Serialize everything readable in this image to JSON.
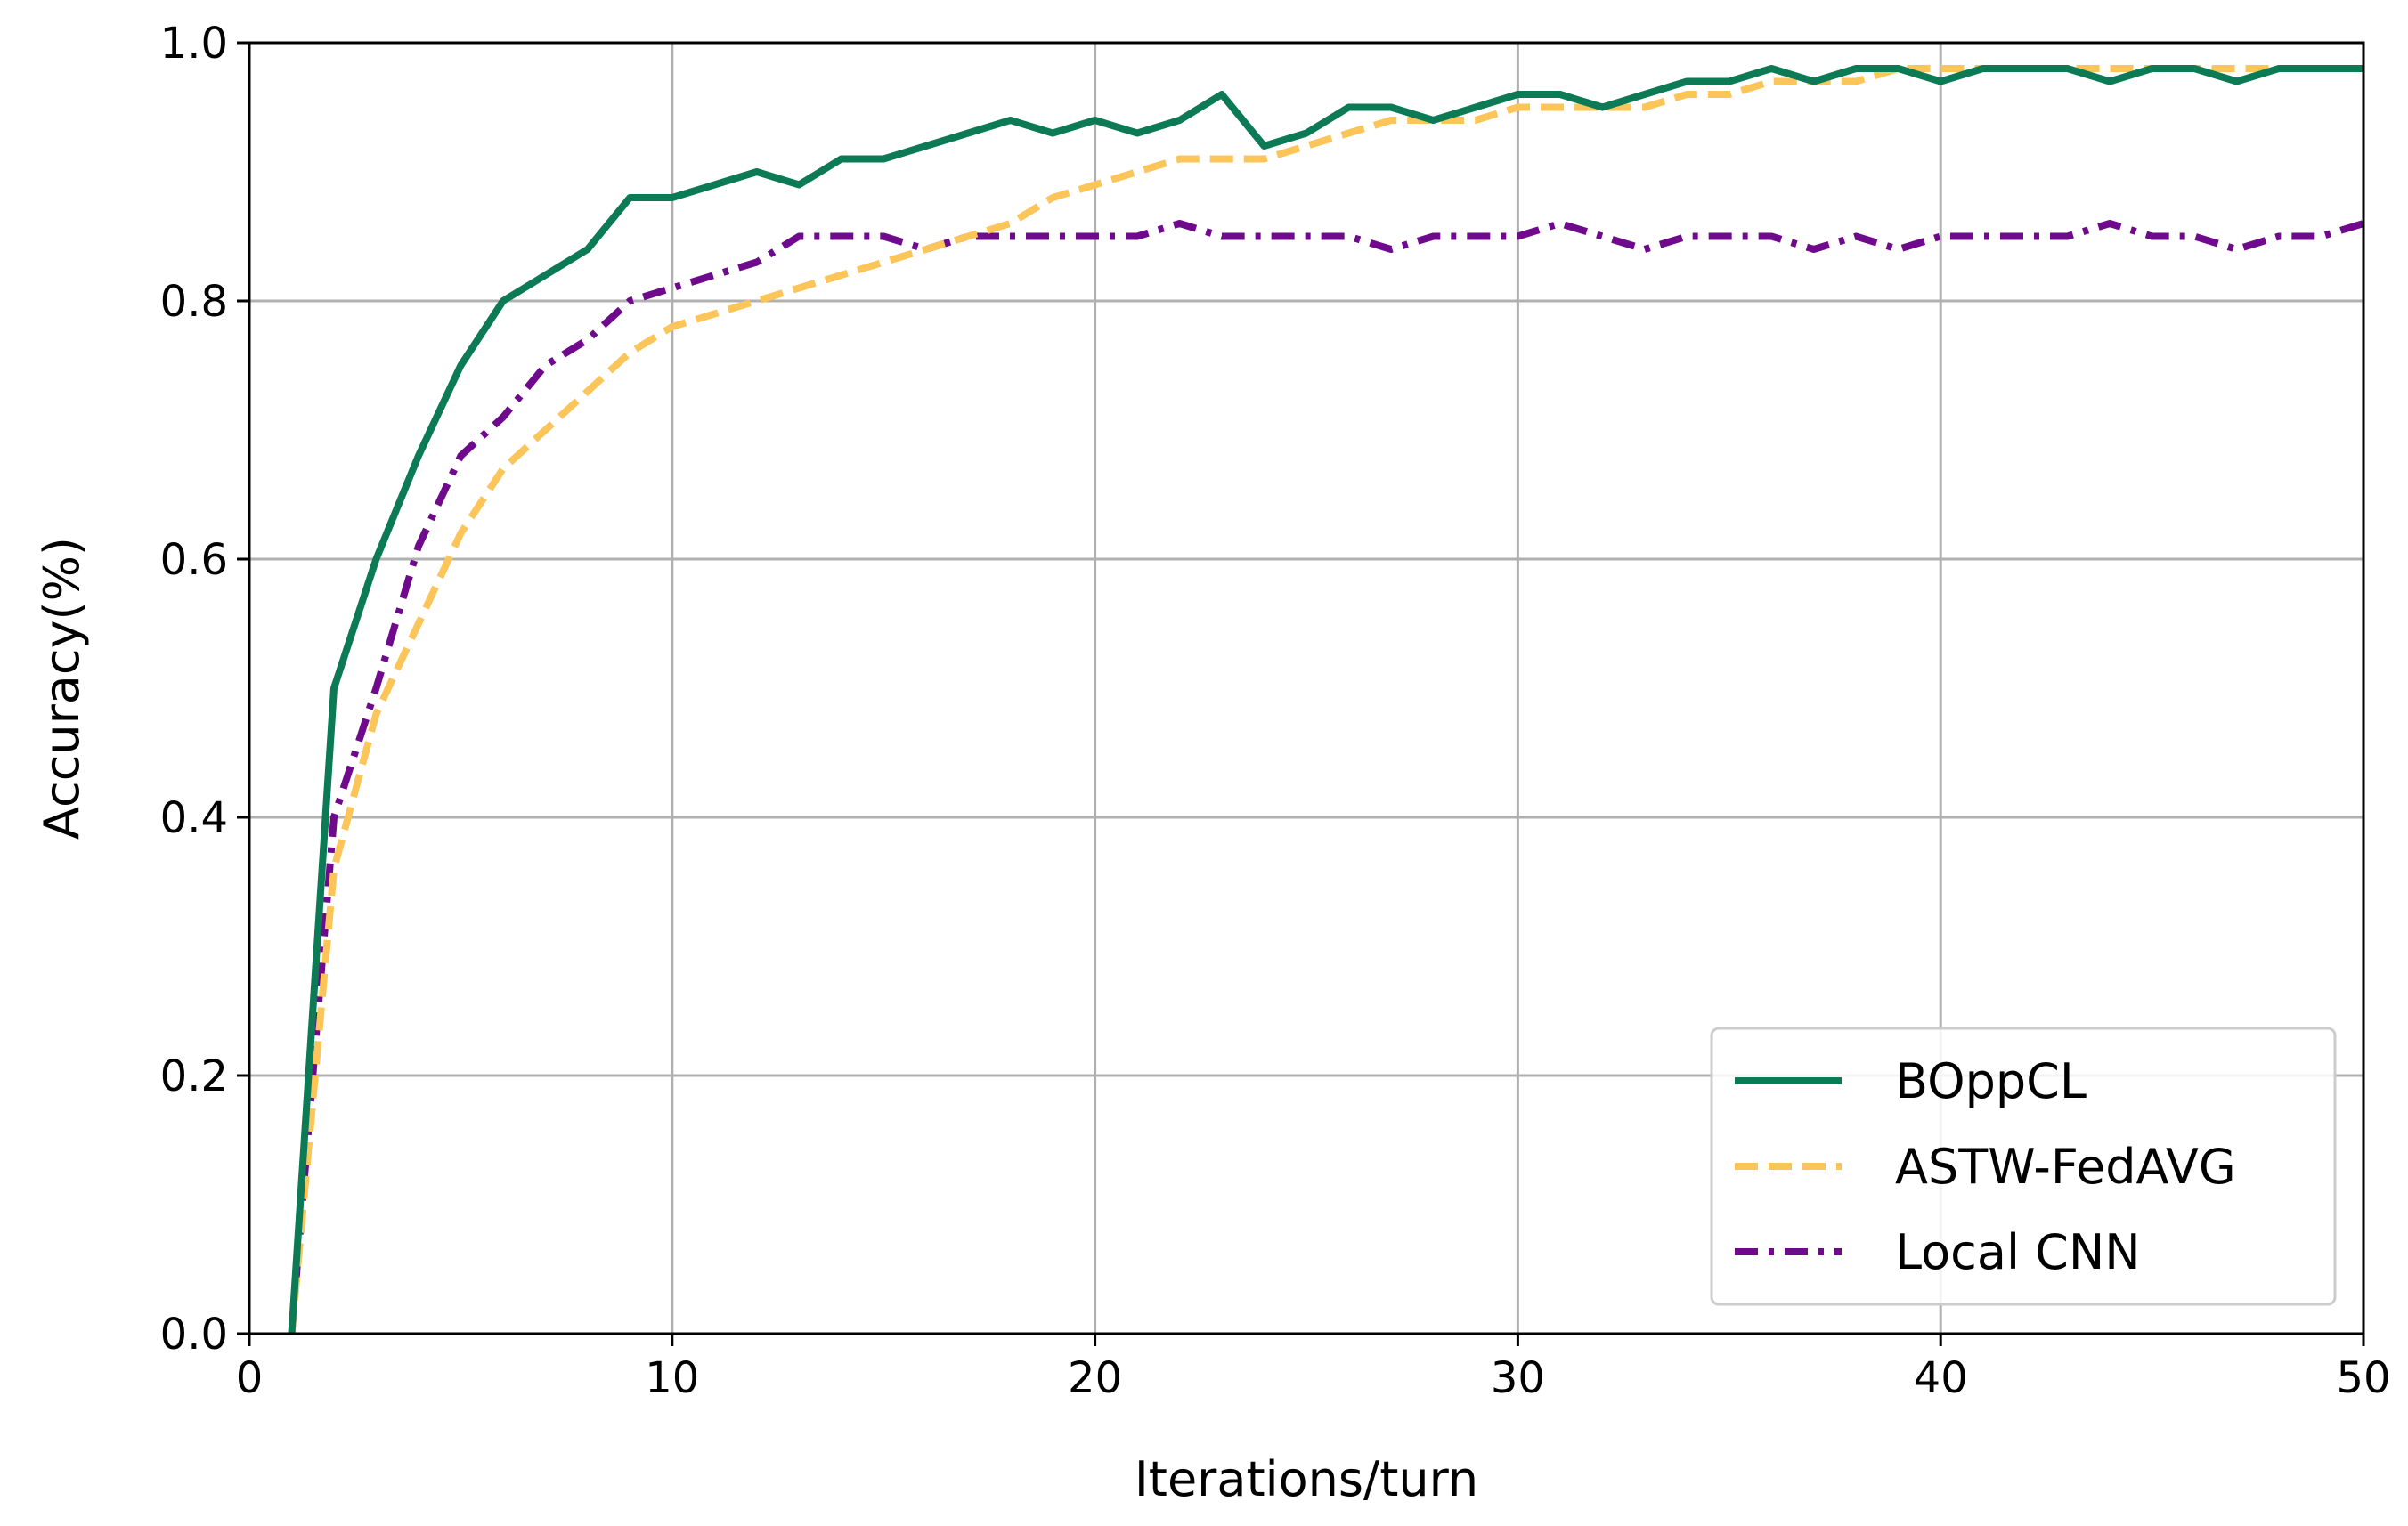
{
  "chart_data": {
    "type": "line",
    "xlabel": "Iterations/turn",
    "ylabel": "Accuracy(%)",
    "xlim": [
      0,
      50
    ],
    "ylim": [
      0.0,
      1.0
    ],
    "xticks": [
      "0",
      "10",
      "20",
      "30",
      "40",
      "50"
    ],
    "yticks": [
      "0.0",
      "0.2",
      "0.4",
      "0.6",
      "0.8",
      "1.0"
    ],
    "grid": true,
    "legend_position": "lower-right",
    "x": [
      1,
      2,
      3,
      4,
      5,
      6,
      7,
      8,
      9,
      10,
      11,
      12,
      13,
      14,
      15,
      16,
      17,
      18,
      19,
      20,
      21,
      22,
      23,
      24,
      25,
      26,
      27,
      28,
      29,
      30,
      31,
      32,
      33,
      34,
      35,
      36,
      37,
      38,
      39,
      40,
      41,
      42,
      43,
      44,
      45,
      46,
      47,
      48,
      49,
      50
    ],
    "series": [
      {
        "name": "BOppCL",
        "color": "#0b7a55",
        "style": "solid",
        "values": [
          0.0,
          0.5,
          0.6,
          0.68,
          0.75,
          0.8,
          0.82,
          0.84,
          0.88,
          0.88,
          0.89,
          0.9,
          0.89,
          0.91,
          0.91,
          0.92,
          0.93,
          0.94,
          0.93,
          0.94,
          0.93,
          0.94,
          0.96,
          0.92,
          0.93,
          0.95,
          0.95,
          0.94,
          0.95,
          0.96,
          0.96,
          0.95,
          0.96,
          0.97,
          0.97,
          0.98,
          0.97,
          0.98,
          0.98,
          0.97,
          0.98,
          0.98,
          0.98,
          0.97,
          0.98,
          0.98,
          0.97,
          0.98,
          0.98,
          0.98
        ]
      },
      {
        "name": "ASTW-FedAVG",
        "color": "#fcc55a",
        "style": "dashed",
        "values": [
          0.0,
          0.36,
          0.48,
          0.55,
          0.62,
          0.67,
          0.7,
          0.73,
          0.76,
          0.78,
          0.79,
          0.8,
          0.81,
          0.82,
          0.83,
          0.84,
          0.85,
          0.86,
          0.88,
          0.89,
          0.9,
          0.91,
          0.91,
          0.91,
          0.92,
          0.93,
          0.94,
          0.94,
          0.94,
          0.95,
          0.95,
          0.95,
          0.95,
          0.96,
          0.96,
          0.97,
          0.97,
          0.97,
          0.98,
          0.98,
          0.98,
          0.98,
          0.98,
          0.98,
          0.98,
          0.98,
          0.98,
          0.98,
          0.98,
          0.98
        ]
      },
      {
        "name": "Local CNN",
        "color": "#6f0a8c",
        "style": "dashdot",
        "values": [
          0.0,
          0.4,
          0.5,
          0.61,
          0.68,
          0.71,
          0.75,
          0.77,
          0.8,
          0.81,
          0.82,
          0.83,
          0.85,
          0.85,
          0.85,
          0.84,
          0.85,
          0.85,
          0.85,
          0.85,
          0.85,
          0.86,
          0.85,
          0.85,
          0.85,
          0.85,
          0.84,
          0.85,
          0.85,
          0.85,
          0.86,
          0.85,
          0.84,
          0.85,
          0.85,
          0.85,
          0.84,
          0.85,
          0.84,
          0.85,
          0.85,
          0.85,
          0.85,
          0.86,
          0.85,
          0.85,
          0.84,
          0.85,
          0.85,
          0.86
        ]
      }
    ]
  }
}
